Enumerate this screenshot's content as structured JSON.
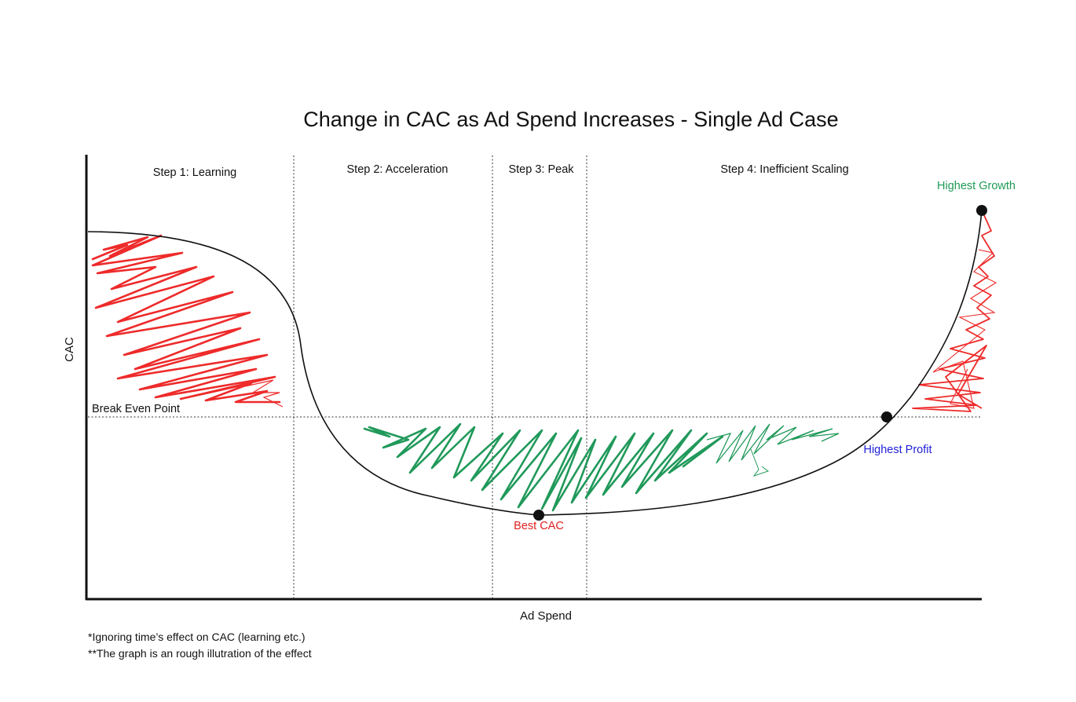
{
  "title": "Change in CAC as Ad Spend Increases - Single Ad Case",
  "axes": {
    "x_label": "Ad Spend",
    "y_label": "CAC"
  },
  "steps": [
    {
      "label": "Step 1: Learning"
    },
    {
      "label": "Step 2: Acceleration"
    },
    {
      "label": "Step 3: Peak"
    },
    {
      "label": "Step 4: Inefficient Scaling"
    }
  ],
  "reference_line": {
    "label": "Break Even Point"
  },
  "points": {
    "best_cac": {
      "label": "Best CAC"
    },
    "highest_profit": {
      "label": "Highest Profit"
    },
    "highest_growth": {
      "label": "Highest Growth"
    }
  },
  "colors": {
    "loss_scribble": "#ee2a2a",
    "profit_scribble": "#20995a",
    "best_cac": "#e02020",
    "highest_profit": "#2121d8",
    "highest_growth": "#1f9a55",
    "curve": "#111111"
  },
  "notes": [
    "*Ignoring time’s effect on CAC (learning etc.)",
    "**The graph is an rough illutration of the effect"
  ]
}
